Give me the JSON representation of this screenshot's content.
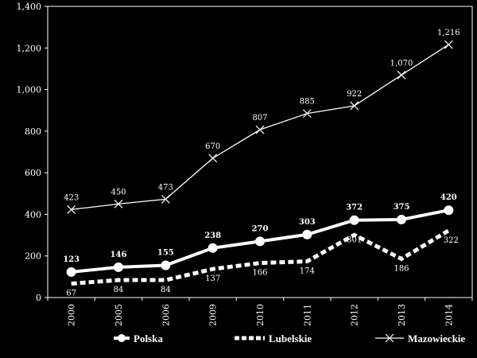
{
  "chart_data": {
    "type": "line",
    "categories": [
      "2000",
      "2005",
      "2006",
      "2009",
      "2010",
      "2011",
      "2012",
      "2013",
      "2014"
    ],
    "series": [
      {
        "name": "Polska",
        "values": [
          123,
          146,
          155,
          238,
          270,
          303,
          372,
          375,
          420
        ],
        "labels": [
          "123",
          "146",
          "155",
          "238",
          "270",
          "303",
          "372",
          "375",
          "420"
        ],
        "marker": "circle",
        "line": "solid-thick",
        "color": "#ffffff"
      },
      {
        "name": "Lubelskie",
        "values": [
          67,
          84,
          84,
          137,
          166,
          174,
          301,
          186,
          322
        ],
        "labels": [
          "67",
          "84",
          "84",
          "137",
          "166",
          "174",
          "301",
          "186",
          "322"
        ],
        "marker": "none",
        "line": "dashed-thick",
        "color": "#ffffff"
      },
      {
        "name": "Mazowieckie",
        "values": [
          423,
          450,
          473,
          670,
          807,
          885,
          922,
          1070,
          1216
        ],
        "labels": [
          "423",
          "450",
          "473",
          "670",
          "807",
          "885",
          "922",
          "1,070",
          "1,216"
        ],
        "marker": "x",
        "line": "solid-thin",
        "color": "#ffffff"
      }
    ],
    "y_ticks": [
      "0",
      "200",
      "400",
      "600",
      "800",
      "1,000",
      "1,200",
      "1,400"
    ],
    "ylim": [
      0,
      1400
    ],
    "grid": false,
    "legend_position": "bottom",
    "title": "",
    "xlabel": "",
    "ylabel": ""
  }
}
